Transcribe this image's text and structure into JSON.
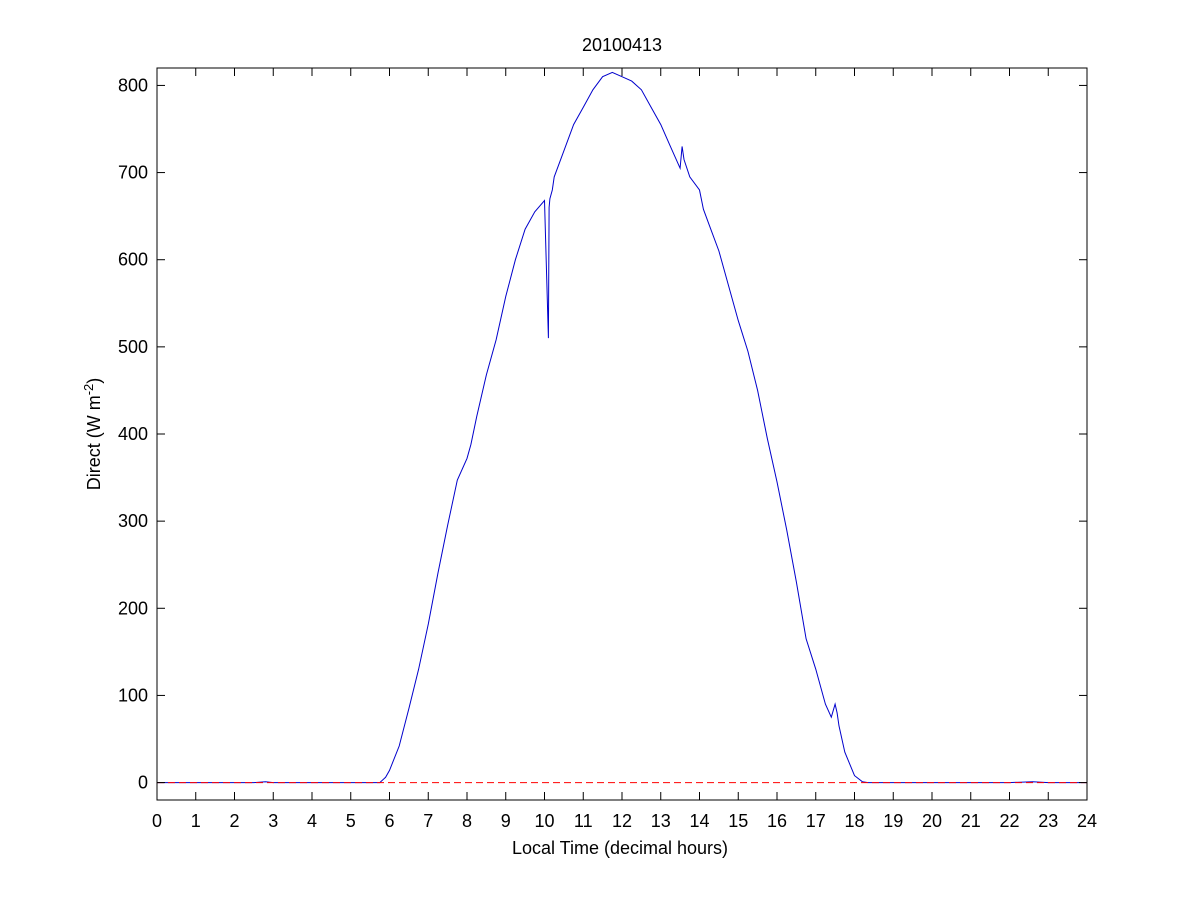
{
  "chart_data": {
    "type": "line",
    "title": "20100413",
    "xlabel": "Local Time (decimal hours)",
    "ylabel": "Direct (W m-2)",
    "ylabel_main": "Direct (W m",
    "ylabel_sup": "-2",
    "ylabel_end": ")",
    "xlim": [
      0,
      24
    ],
    "ylim": [
      -20,
      820
    ],
    "xticks": [
      0,
      1,
      2,
      3,
      4,
      5,
      6,
      7,
      8,
      9,
      10,
      11,
      12,
      13,
      14,
      15,
      16,
      17,
      18,
      19,
      20,
      21,
      22,
      23,
      24
    ],
    "yticks": [
      0,
      100,
      200,
      300,
      400,
      500,
      600,
      700,
      800
    ],
    "grid": false,
    "series": [
      {
        "color": "#0000cc",
        "style": "solid",
        "x": [
          0,
          0.5,
          1,
          1.5,
          2,
          2.5,
          2.8,
          3,
          3.5,
          4,
          4.5,
          5,
          5.5,
          5.75,
          5.9,
          6,
          6.25,
          6.5,
          6.75,
          7,
          7.25,
          7.5,
          7.75,
          8,
          8.1,
          8.25,
          8.5,
          8.75,
          9,
          9.25,
          9.5,
          9.75,
          10,
          10.1,
          10.12,
          10.14,
          10.2,
          10.25,
          10.5,
          10.75,
          11,
          11.25,
          11.5,
          11.75,
          12,
          12.25,
          12.5,
          12.75,
          13,
          13.25,
          13.5,
          13.55,
          13.6,
          13.75,
          14,
          14.1,
          14.25,
          14.5,
          14.75,
          15,
          15.25,
          15.5,
          15.75,
          16,
          16.25,
          16.5,
          16.75,
          17,
          17.25,
          17.4,
          17.5,
          17.55,
          17.6,
          17.75,
          18,
          18.2,
          18.35,
          18.5,
          19,
          20,
          21,
          22,
          22.6,
          23,
          23.5,
          24
        ],
        "y": [
          0,
          0,
          0,
          0,
          0,
          0,
          1,
          0,
          0,
          0,
          0,
          0,
          0,
          0,
          6,
          14,
          42,
          85,
          130,
          182,
          240,
          295,
          347,
          372,
          388,
          420,
          468,
          508,
          558,
          600,
          635,
          655,
          668,
          510,
          660,
          670,
          680,
          695,
          725,
          755,
          775,
          795,
          810,
          815,
          810,
          805,
          795,
          775,
          755,
          730,
          705,
          730,
          715,
          695,
          680,
          658,
          640,
          610,
          570,
          530,
          495,
          450,
          395,
          345,
          290,
          230,
          165,
          130,
          90,
          75,
          90,
          80,
          65,
          35,
          8,
          1,
          0,
          0,
          0,
          0,
          0,
          0,
          1,
          0,
          0,
          0
        ]
      },
      {
        "color": "#ff0000",
        "style": "dashed",
        "x": [
          0,
          24
        ],
        "y": [
          0,
          0
        ]
      }
    ]
  }
}
